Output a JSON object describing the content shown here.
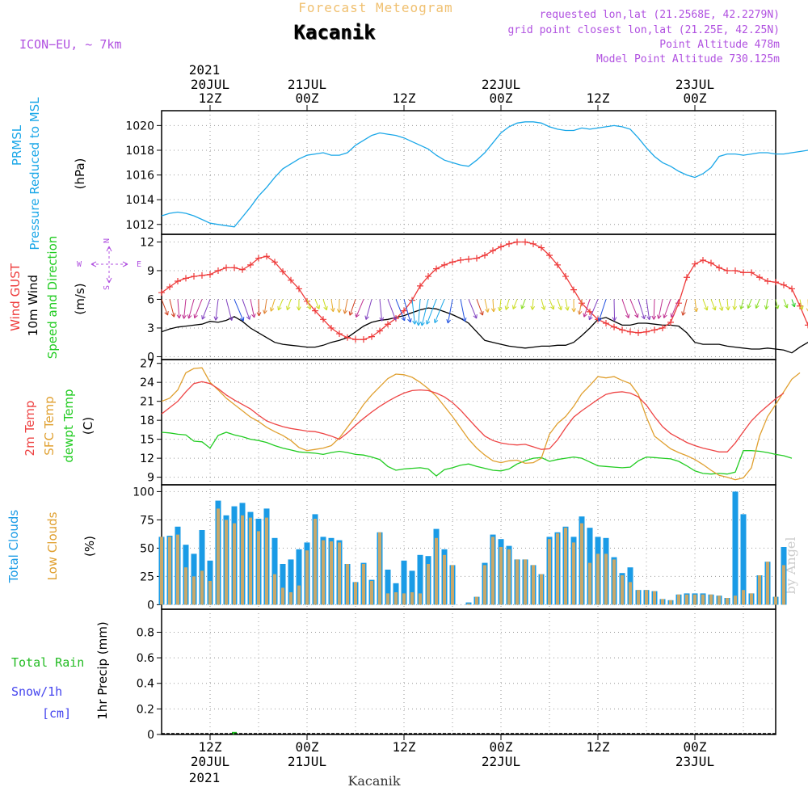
{
  "header": {
    "forecast_label": "Forecast Meteogram",
    "location": "Kacanik",
    "model": "ICON−EU, ~ 7km",
    "requested": "requested lon,lat (21.2568E, 42.2279N)",
    "grid_point": "grid point closest lon,lat (21.25E, 42.25N)",
    "point_altitude": "Point Altitude 478m",
    "model_altitude": "Model Point Altitude 730.125m",
    "watermark": "by Angel",
    "footer_location": "Kacanik"
  },
  "time_axis": {
    "year": "2021",
    "top_labels": [
      {
        "h": 12,
        "line1": "20JUL",
        "line2": "12Z"
      },
      {
        "h": 24,
        "line1": "21JUL",
        "line2": "00Z"
      },
      {
        "h": 36,
        "line1": "",
        "line2": "12Z"
      },
      {
        "h": 48,
        "line1": "22JUL",
        "line2": "00Z"
      },
      {
        "h": 60,
        "line1": "",
        "line2": "12Z"
      },
      {
        "h": 72,
        "line1": "23JUL",
        "line2": "00Z"
      }
    ],
    "bottom_labels": [
      {
        "h": 12,
        "line1": "12Z",
        "line2": "20JUL"
      },
      {
        "h": 24,
        "line1": "00Z",
        "line2": "21JUL"
      },
      {
        "h": 36,
        "line1": "12Z",
        "line2": ""
      },
      {
        "h": 48,
        "line1": "00Z",
        "line2": "22JUL"
      },
      {
        "h": 60,
        "line1": "12Z",
        "line2": ""
      },
      {
        "h": 72,
        "line1": "00Z",
        "line2": "23JUL"
      }
    ]
  },
  "panels": {
    "pressure": {
      "labels": [
        "PRMSL",
        "Pressure Reduced to MSL"
      ],
      "unit": "(hPa)"
    },
    "wind": {
      "labels": [
        "Wind GUST",
        "10m Wind",
        "Speed and Direction"
      ],
      "unit": "(m/s)",
      "compass": {
        "n": "N",
        "s": "S",
        "w": "W",
        "e": "E"
      }
    },
    "temp": {
      "labels": [
        "2m Temp",
        "SFC Temp",
        "dewpt Temp"
      ],
      "unit": "(C)"
    },
    "clouds": {
      "labels": [
        "Total Clouds",
        "Low Clouds"
      ],
      "unit": "(%)"
    },
    "precip": {
      "labels": [
        "Total Rain",
        "Snow/1h",
        "[cm]"
      ],
      "ylabel": "1hr Precip (mm)"
    }
  },
  "colors": {
    "pressure": "#1aa7e8",
    "gust": "#ee3b3b",
    "wind": "#000000",
    "temp2m": "#ee4444",
    "sfc": "#e0a030",
    "dewpt": "#22cc22",
    "total_clouds": "#1a9be6",
    "low_clouds": "#c8a86a",
    "rain": "#22bb22",
    "snow": "#4444ee",
    "header_purple": "#b050e0",
    "header_orange": "#f0c070"
  },
  "chart_data": [
    {
      "type": "line",
      "name": "pressure",
      "x_start_hour": 6,
      "x_step_hours": 1,
      "xlim": [
        6,
        82
      ],
      "ylim": [
        1011.2,
        1021.2
      ],
      "yticks": [
        1012,
        1014,
        1016,
        1018,
        1020
      ],
      "ylabel": "(hPa)",
      "grid": true,
      "series": [
        {
          "values": [
            1012.7,
            1012.9,
            1013.0,
            1012.9,
            1012.7,
            1012.4,
            1012.1,
            1012.0,
            1011.9,
            1011.8,
            1012.6,
            1013.4,
            1014.3,
            1015.0,
            1015.8,
            1016.5,
            1016.9,
            1017.3,
            1017.6,
            1017.7,
            1017.8,
            1017.6,
            1017.6,
            1017.8,
            1018.4,
            1018.8,
            1019.2,
            1019.4,
            1019.3,
            1019.2,
            1019.0,
            1018.7,
            1018.4,
            1018.1,
            1017.6,
            1017.2,
            1017.0,
            1016.8,
            1016.7,
            1017.2,
            1017.8,
            1018.6,
            1019.4,
            1019.9,
            1020.2,
            1020.3,
            1020.3,
            1020.2,
            1019.9,
            1019.7,
            1019.6,
            1019.6,
            1019.8,
            1019.7,
            1019.8,
            1019.9,
            1020.0,
            1019.9,
            1019.7,
            1019.0,
            1018.2,
            1017.5,
            1017.0,
            1016.7,
            1016.3,
            1016.0,
            1015.8,
            1016.1,
            1016.6,
            1017.5,
            1017.7,
            1017.7,
            1017.6,
            1017.7,
            1017.8,
            1017.8,
            1017.7,
            1017.7,
            1017.8,
            1017.9,
            1018.0,
            1018.0,
            1017.9,
            1017.7,
            1017.4,
            1017.0,
            1016.6,
            1016.0
          ]
        }
      ]
    },
    {
      "type": "line",
      "name": "wind",
      "x_start_hour": 6,
      "x_step_hours": 1,
      "xlim": [
        6,
        82
      ],
      "ylim": [
        -0.3,
        12.8
      ],
      "yticks": [
        0,
        3,
        6,
        9,
        12
      ],
      "ylabel": "(m/s)",
      "grid": true,
      "series": [
        {
          "name": "Wind GUST",
          "values": [
            6.7,
            7.3,
            7.9,
            8.2,
            8.4,
            8.5,
            8.6,
            9.0,
            9.3,
            9.3,
            9.1,
            9.6,
            10.3,
            10.5,
            9.9,
            8.9,
            8.0,
            7.1,
            5.8,
            4.8,
            3.9,
            3.0,
            2.4,
            2.0,
            1.8,
            1.8,
            2.1,
            2.7,
            3.4,
            4.0,
            4.8,
            5.9,
            7.4,
            8.4,
            9.2,
            9.6,
            9.9,
            10.1,
            10.2,
            10.3,
            10.6,
            11.1,
            11.5,
            11.8,
            12.0,
            12.0,
            11.8,
            11.4,
            10.6,
            9.6,
            8.4,
            7.0,
            5.6,
            4.7,
            3.9,
            3.5,
            3.1,
            2.8,
            2.6,
            2.5,
            2.6,
            2.8,
            3.0,
            3.6,
            5.6,
            8.3,
            9.7,
            10.1,
            9.8,
            9.3,
            9.0,
            9.0,
            8.8,
            8.8,
            8.3,
            7.9,
            7.8,
            7.5,
            7.1,
            5.3,
            3.3,
            2.4,
            2.5,
            2.2,
            1.8,
            1.5,
            1.5,
            1.5,
            1.5,
            1.4,
            1.6,
            3.0,
            4.4,
            5.8,
            6.4,
            6.9,
            7.2
          ]
        },
        {
          "name": "10m Wind",
          "values": [
            2.6,
            2.9,
            3.1,
            3.2,
            3.3,
            3.4,
            3.7,
            3.6,
            3.8,
            4.2,
            3.7,
            3.0,
            2.5,
            2.0,
            1.5,
            1.3,
            1.2,
            1.1,
            1.0,
            1.0,
            1.2,
            1.5,
            1.7,
            2.0,
            2.6,
            3.2,
            3.6,
            3.8,
            3.9,
            4.1,
            4.3,
            4.6,
            4.9,
            5.1,
            5.0,
            4.7,
            4.4,
            4.0,
            3.5,
            2.6,
            1.7,
            1.5,
            1.3,
            1.1,
            1.0,
            0.9,
            1.0,
            1.1,
            1.1,
            1.2,
            1.2,
            1.5,
            2.2,
            3.0,
            3.9,
            4.1,
            3.7,
            3.3,
            3.3,
            3.5,
            3.5,
            3.4,
            3.3,
            3.3,
            3.2,
            2.5,
            1.5,
            1.3,
            1.3,
            1.3,
            1.1,
            1.0,
            0.9,
            0.8,
            0.8,
            0.9,
            0.8,
            0.7,
            0.4,
            1.0,
            1.5,
            1.8,
            2.2,
            2.6,
            2.8,
            2.9
          ]
        }
      ]
    },
    {
      "type": "line",
      "name": "temperature",
      "x_start_hour": 6,
      "x_step_hours": 1,
      "xlim": [
        6,
        82
      ],
      "ylim": [
        7.8,
        27.6
      ],
      "yticks": [
        9,
        12,
        15,
        18,
        21,
        24,
        27
      ],
      "ylabel": "(C)",
      "grid": true,
      "series": [
        {
          "name": "2m Temp",
          "values": [
            19.0,
            20.0,
            21.0,
            22.5,
            23.8,
            24.1,
            23.8,
            23.0,
            22.0,
            21.2,
            20.5,
            19.8,
            18.8,
            17.9,
            17.4,
            17.0,
            16.7,
            16.5,
            16.3,
            16.2,
            15.9,
            15.5,
            15.0,
            16.0,
            17.2,
            18.3,
            19.3,
            20.2,
            21.0,
            21.7,
            22.3,
            22.7,
            22.8,
            22.7,
            22.3,
            21.7,
            20.8,
            19.6,
            18.2,
            16.8,
            15.5,
            14.8,
            14.4,
            14.2,
            14.1,
            14.2,
            13.8,
            13.4,
            13.5,
            14.9,
            16.8,
            18.5,
            19.5,
            20.4,
            21.3,
            22.1,
            22.4,
            22.5,
            22.3,
            21.7,
            20.4,
            18.6,
            17.0,
            15.9,
            15.2,
            14.5,
            14.0,
            13.6,
            13.3,
            13.0,
            13.0,
            14.4,
            16.2,
            17.9,
            19.2,
            20.3,
            21.4,
            22.3
          ]
        },
        {
          "name": "SFC Temp",
          "values": [
            21.0,
            21.5,
            22.8,
            25.5,
            26.2,
            26.3,
            24.0,
            22.8,
            21.5,
            20.5,
            19.5,
            18.5,
            17.8,
            16.9,
            16.2,
            15.6,
            14.8,
            13.7,
            13.2,
            13.4,
            13.6,
            14.0,
            15.2,
            16.9,
            18.6,
            20.5,
            22.0,
            23.3,
            24.6,
            25.3,
            25.2,
            24.8,
            24.0,
            23.0,
            21.8,
            20.2,
            18.6,
            16.8,
            15.0,
            13.6,
            12.5,
            11.6,
            11.3,
            11.6,
            11.7,
            11.2,
            11.3,
            12.0,
            15.8,
            17.5,
            18.6,
            20.2,
            22.2,
            23.5,
            24.9,
            24.7,
            24.9,
            24.3,
            23.8,
            22.1,
            18.5,
            15.5,
            14.5,
            13.5,
            12.9,
            12.4,
            11.8,
            11.0,
            10.1,
            9.3,
            9.0,
            8.6,
            8.9,
            10.5,
            15.5,
            18.6,
            20.5,
            22.5,
            24.5,
            25.5
          ]
        },
        {
          "name": "dewpt Temp",
          "values": [
            16.1,
            16.0,
            15.8,
            15.7,
            14.7,
            14.6,
            13.6,
            15.6,
            16.1,
            15.7,
            15.4,
            15.0,
            14.8,
            14.5,
            14.0,
            13.6,
            13.3,
            13.0,
            12.9,
            12.8,
            12.6,
            12.9,
            13.1,
            12.9,
            12.6,
            12.5,
            12.2,
            11.8,
            10.7,
            10.1,
            10.3,
            10.4,
            10.5,
            10.3,
            9.2,
            10.2,
            10.5,
            10.9,
            11.1,
            10.7,
            10.4,
            10.1,
            10.0,
            10.3,
            11.1,
            11.6,
            12.0,
            12.1,
            11.5,
            11.8,
            12.0,
            12.2,
            12.0,
            11.4,
            10.8,
            10.7,
            10.6,
            10.5,
            10.6,
            11.6,
            12.2,
            12.1,
            12.0,
            11.9,
            11.5,
            10.8,
            10.0,
            9.6,
            9.5,
            9.6,
            9.5,
            9.8,
            13.2,
            13.2,
            13.1,
            12.9,
            12.6,
            12.4,
            12.0
          ]
        }
      ]
    },
    {
      "type": "bar",
      "name": "clouds",
      "x_start_hour": 6,
      "x_step_hours": 1,
      "xlim": [
        6,
        82
      ],
      "ylim": [
        -4,
        106
      ],
      "yticks": [
        0,
        25,
        50,
        75,
        100
      ],
      "ylabel": "(%)",
      "grid": true,
      "series": [
        {
          "name": "Total Clouds",
          "values": [
            60,
            61,
            69,
            53,
            45,
            66,
            39,
            92,
            79,
            87,
            90,
            82,
            76,
            85,
            59,
            36,
            40,
            49,
            55,
            80,
            60,
            59,
            57,
            36,
            20,
            37,
            22,
            64,
            31,
            19,
            39,
            30,
            44,
            43,
            67,
            49,
            35,
            0,
            2,
            7,
            37,
            62,
            58,
            52,
            40,
            40,
            35,
            27,
            60,
            64,
            69,
            60,
            78,
            68,
            60,
            59,
            42,
            28,
            33,
            13,
            13,
            12,
            5,
            4,
            9,
            10,
            10,
            10,
            9,
            8,
            6,
            100,
            80,
            10,
            26,
            38,
            7,
            51
          ]
        },
        {
          "name": "Low Clouds",
          "values": [
            60,
            60,
            62,
            33,
            25,
            30,
            21,
            85,
            75,
            72,
            79,
            77,
            65,
            77,
            27,
            15,
            11,
            17,
            48,
            76,
            57,
            56,
            55,
            36,
            20,
            36,
            21,
            64,
            10,
            11,
            10,
            11,
            10,
            36,
            59,
            44,
            35,
            0,
            1,
            7,
            35,
            60,
            51,
            49,
            40,
            40,
            35,
            27,
            58,
            63,
            68,
            55,
            72,
            37,
            45,
            45,
            40,
            26,
            20,
            13,
            13,
            12,
            5,
            4,
            9,
            9,
            9,
            9,
            9,
            8,
            6,
            8,
            13,
            10,
            26,
            38,
            7,
            35
          ]
        }
      ]
    },
    {
      "type": "bar",
      "name": "precip",
      "x_start_hour": 6,
      "x_step_hours": 1,
      "xlim": [
        6,
        82
      ],
      "ylim": [
        0,
        0.98
      ],
      "yticks": [
        0,
        0.2,
        0.4,
        0.6,
        0.8
      ],
      "ylabel": "1hr Precip (mm)",
      "grid": true,
      "series": [
        {
          "name": "Total Rain",
          "hours": [
            15
          ],
          "values": [
            0.02
          ]
        }
      ]
    }
  ]
}
